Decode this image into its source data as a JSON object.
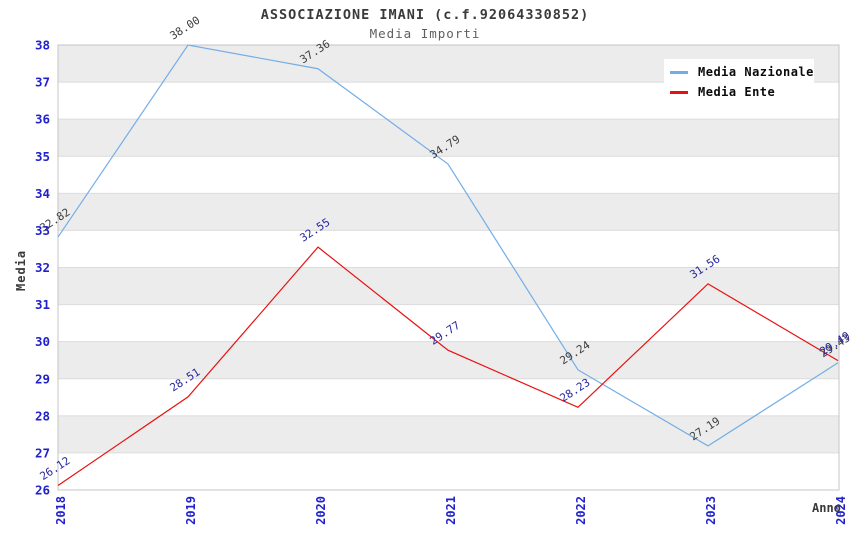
{
  "header": {
    "title": "ASSOCIAZIONE IMANI (c.f.92064330852)",
    "subtitle": "Media Importi"
  },
  "chart_data": {
    "type": "line",
    "title": "ASSOCIAZIONE IMANI (c.f.92064330852)",
    "subtitle": "Media Importi",
    "xlabel": "Anno",
    "ylabel": "Media",
    "x_categories": [
      "2018",
      "2019",
      "2020",
      "2021",
      "2022",
      "2023",
      "2024"
    ],
    "ylim": [
      26,
      38
    ],
    "y_ticks": [
      26,
      27,
      28,
      29,
      30,
      31,
      32,
      33,
      34,
      35,
      36,
      37,
      38
    ],
    "series": [
      {
        "name": "Media Nazionale",
        "color": "#74ade6",
        "label_color": "#3c3c3c",
        "values": [
          32.82,
          38.0,
          37.36,
          34.79,
          29.24,
          27.19,
          29.43
        ]
      },
      {
        "name": "Media Ente",
        "color": "#e81111",
        "label_color": "#26269c",
        "values": [
          26.12,
          28.51,
          32.55,
          29.77,
          28.23,
          31.56,
          29.49
        ]
      }
    ],
    "legend_position": "top-right",
    "grid": "horizontal-bands",
    "band_colors": [
      "#ffffff",
      "#ececec"
    ],
    "gridline_color": "#dcdcdc",
    "border_color": "#c4c4c4",
    "tick_label_color": "#2222cc"
  }
}
